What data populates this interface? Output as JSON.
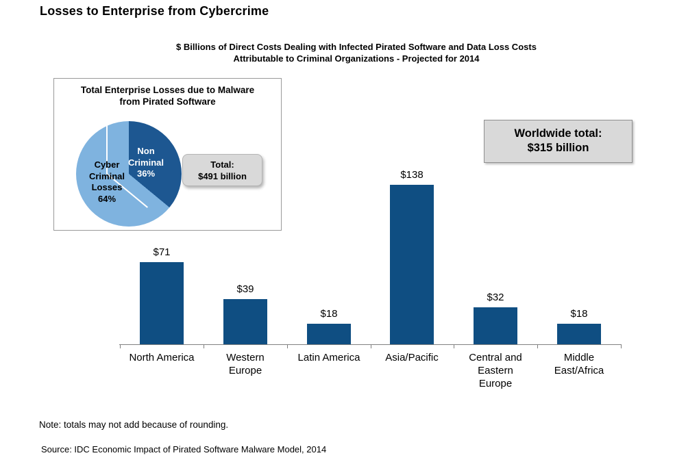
{
  "title": "Losses to Enterprise from Cybercrime",
  "subtitle": {
    "line1": "$ Billions of Direct Costs Dealing with Infected Pirated Software and Data Loss Costs",
    "line2": "Attributable to Criminal Organizations - Projected for 2014"
  },
  "inset": {
    "title_lines": [
      "Total Enterprise Losses due to Malware",
      "from Pirated Software"
    ],
    "total_box": {
      "line1": "Total:",
      "line2": "$491 billion"
    }
  },
  "worldwide_box": {
    "line1": "Worldwide total:",
    "line2": "$315 billion"
  },
  "note": "Note: totals may not add because of rounding.",
  "source": "Source: IDC Economic Impact of Pirated Software Malware Model, 2014",
  "colors": {
    "bar_blue": "#0F4E82",
    "pie_dark_blue": "#1D5791",
    "pie_light_blue": "#7FB3DF",
    "box_gray": "#D9D9D9",
    "axis_gray": "#7f7f7f"
  },
  "chart_data": [
    {
      "type": "bar",
      "title": "$ Billions of Direct Costs Dealing with Infected Pirated Software and Data Loss Costs Attributable to Criminal Organizations - Projected for 2014",
      "categories": [
        "North America",
        "Western Europe",
        "Latin America",
        "Asia/Pacific",
        "Central and Eastern Europe",
        "Middle East/Africa"
      ],
      "category_lines": [
        [
          "North America"
        ],
        [
          "Western",
          "Europe"
        ],
        [
          "Latin America"
        ],
        [
          "Asia/Pacific"
        ],
        [
          "Central and",
          "Eastern",
          "Europe"
        ],
        [
          "Middle",
          "East/Africa"
        ]
      ],
      "values": [
        71,
        39,
        18,
        138,
        32,
        18
      ],
      "value_labels": [
        "$71",
        "$39",
        "$18",
        "$138",
        "$32",
        "$18"
      ],
      "ylabel": "$ Billions",
      "ylim": [
        0,
        160
      ],
      "grid": false,
      "annotation": "Worldwide total: $315 billion"
    },
    {
      "type": "pie",
      "title": "Total Enterprise Losses due to Malware from Pirated Software",
      "slices": [
        {
          "label": "Non Criminal",
          "pct": 36,
          "color": "#1D5791",
          "label_lines": [
            "Non",
            "Criminal",
            "36%"
          ]
        },
        {
          "label": "Cyber Criminal Losses",
          "pct": 64,
          "color": "#7FB3DF",
          "label_lines": [
            "Cyber",
            "Criminal",
            "Losses",
            "64%"
          ]
        }
      ],
      "total": "Total: $491 billion"
    }
  ]
}
